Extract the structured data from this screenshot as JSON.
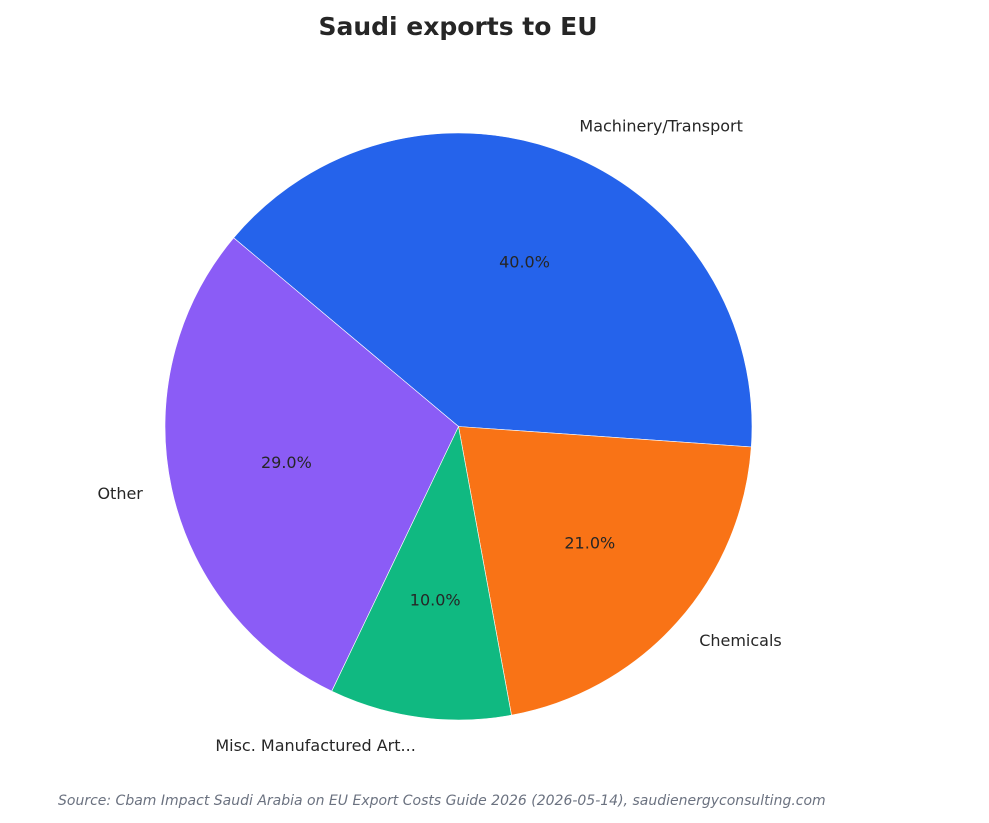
{
  "chart_data": {
    "type": "pie",
    "title": "Saudi exports to EU",
    "slices": [
      {
        "label": "Machinery/Transport",
        "value": 40.0,
        "pct_label": "40.0%",
        "color": "#2563eb"
      },
      {
        "label": "Chemicals",
        "value": 21.0,
        "pct_label": "21.0%",
        "color": "#f97316"
      },
      {
        "label": "Misc. Manufactured Art...",
        "value": 10.0,
        "pct_label": "10.0%",
        "color": "#10b981"
      },
      {
        "label": "Other",
        "value": 29.0,
        "pct_label": "29.0%",
        "color": "#8b5cf6"
      }
    ]
  },
  "footer": {
    "source": "Source: Cbam Impact Saudi Arabia on EU Export Costs Guide 2026 (2026-05-14), saudienergyconsulting.com"
  }
}
